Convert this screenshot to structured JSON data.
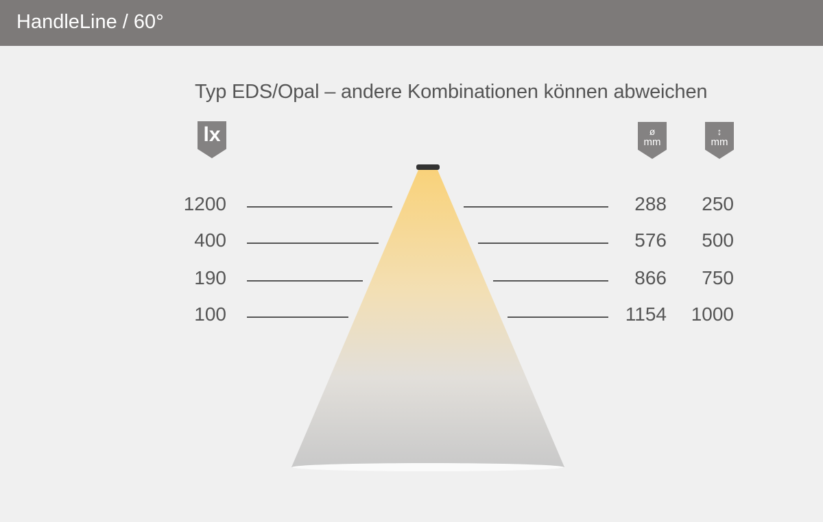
{
  "header": {
    "title": "HandleLine / 60°"
  },
  "subtitle": "Typ EDS/Opal – andere Kombinationen können abweichen",
  "badges": {
    "lux": "lx",
    "diameter_symbol": "ø",
    "diameter_unit": "mm",
    "distance_symbol": "↕",
    "distance_unit": "mm"
  },
  "rows": [
    {
      "lux": "1200",
      "diameter": "288",
      "distance": "250"
    },
    {
      "lux": "400",
      "diameter": "576",
      "distance": "500"
    },
    {
      "lux": "190",
      "diameter": "866",
      "distance": "750"
    },
    {
      "lux": "100",
      "diameter": "1154",
      "distance": "1000"
    }
  ],
  "colors": {
    "header": "#7d7a79",
    "beam_top": "#f9d27a",
    "beam_bottom": "#c8c8c8"
  }
}
